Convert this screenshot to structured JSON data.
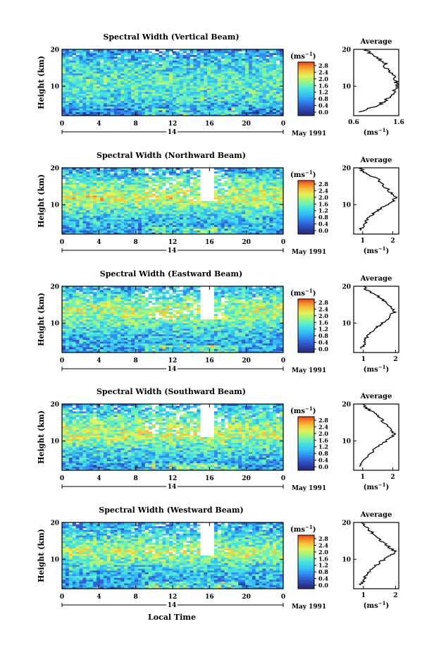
{
  "charts": [
    {
      "title": "Spectral Width (Vertical Beam)",
      "colorbar_unit": "(ms",
      "colorbar_unit_exp": "−1",
      "colorbar_ticks": [
        "2.8",
        "2.4",
        "2.0",
        "1.6",
        "1.2",
        "0.8",
        "0.4",
        "0.0"
      ],
      "avg_title": "Average",
      "avg_unit": "(ms",
      "avg_unit_exp": "−1",
      "avg_x_ticks": [
        "0.6",
        "1.6"
      ],
      "avg_x_range": [
        0.6,
        1.6
      ],
      "date_label": "May 1991",
      "day_label": "14"
    },
    {
      "title": "Spectral Width (Northward Beam)",
      "colorbar_unit": "(ms",
      "colorbar_unit_exp": "−1",
      "colorbar_ticks": [
        "2.8",
        "2.4",
        "2.0",
        "1.6",
        "1.2",
        "0.8",
        "0.4",
        "0.0"
      ],
      "avg_title": "Average",
      "avg_unit": "(ms",
      "avg_unit_exp": "−1",
      "avg_x_ticks": [
        "1",
        "2"
      ],
      "avg_x_range": [
        0.7,
        2.2
      ],
      "date_label": "May 1991",
      "day_label": "14"
    },
    {
      "title": "Spectral Width (Eastward Beam)",
      "colorbar_unit": "(ms",
      "colorbar_unit_exp": "−1",
      "colorbar_ticks": [
        "2.8",
        "2.4",
        "2.0",
        "1.6",
        "1.2",
        "0.8",
        "0.4",
        "0.0"
      ],
      "avg_title": "Average",
      "avg_unit": "(ms",
      "avg_unit_exp": "−1",
      "avg_x_ticks": [
        "1",
        "2"
      ],
      "avg_x_range": [
        0.7,
        2.1
      ],
      "date_label": "May 1991",
      "day_label": "14"
    },
    {
      "title": "Spectral Width (Southward Beam)",
      "colorbar_unit": "(ms",
      "colorbar_unit_exp": "−1",
      "colorbar_ticks": [
        "2.8",
        "2.4",
        "2.0",
        "1.6",
        "1.2",
        "0.8",
        "0.4",
        "0.0"
      ],
      "avg_title": "Average",
      "avg_unit": "(ms",
      "avg_unit_exp": "−1",
      "avg_x_ticks": [
        "1",
        "2"
      ],
      "avg_x_range": [
        0.7,
        2.2
      ],
      "date_label": "May 1991",
      "day_label": "14"
    },
    {
      "title": "Spectral Width (Westward Beam)",
      "colorbar_unit": "(ms",
      "colorbar_unit_exp": "−1",
      "colorbar_ticks": [
        "2.8",
        "2.4",
        "2.0",
        "1.6",
        "1.2",
        "0.8",
        "0.4",
        "0.0"
      ],
      "avg_title": "Average",
      "avg_unit": "(ms",
      "avg_unit_exp": "−1",
      "avg_x_ticks": [
        "1",
        "2"
      ],
      "avg_x_range": [
        0.7,
        2.1
      ],
      "date_label": "May 1991",
      "day_label": "14"
    }
  ],
  "shared": {
    "ylabel": "Height (km)",
    "xlabel": "Local Time",
    "x_ticks": [
      "0",
      "4",
      "8",
      "12",
      "16",
      "20",
      "0"
    ],
    "x_range": [
      0,
      24
    ],
    "y_ticks": [
      "20",
      "10"
    ],
    "y_range": [
      2,
      20
    ],
    "colorscale": [
      "#2c2c70",
      "#2a3a9e",
      "#2f5fd0",
      "#2f8ef0",
      "#35bff5",
      "#45dfe0",
      "#6ff0b8",
      "#a8f57a",
      "#e3f25a",
      "#f7c63c",
      "#f48a2a",
      "#e63f1f"
    ]
  },
  "chart_data": [
    {
      "type": "heatmap",
      "title": "Spectral Width (Vertical Beam)",
      "xlabel": "",
      "ylabel": "Height (km)",
      "x_range": [
        0,
        24
      ],
      "y_range": [
        2,
        20
      ],
      "z_range": [
        0.0,
        3.0
      ],
      "z_unit": "ms-1",
      "profile": {
        "heights": [
          3,
          4,
          5,
          6,
          7,
          8,
          9,
          10,
          11,
          12,
          13,
          14,
          15,
          16,
          17,
          18,
          19,
          20
        ],
        "values": [
          0.7,
          0.95,
          1.15,
          1.3,
          1.4,
          1.45,
          1.5,
          1.55,
          1.55,
          1.5,
          1.45,
          1.4,
          1.3,
          1.3,
          1.2,
          1.05,
          0.95,
          0.85
        ]
      }
    },
    {
      "type": "heatmap",
      "title": "Spectral Width (Northward Beam)",
      "xlabel": "",
      "ylabel": "Height (km)",
      "x_range": [
        0,
        24
      ],
      "y_range": [
        2,
        20
      ],
      "z_range": [
        0.0,
        3.0
      ],
      "z_unit": "ms-1",
      "profile": {
        "heights": [
          3,
          4,
          5,
          6,
          7,
          8,
          9,
          10,
          11,
          12,
          13,
          14,
          15,
          16,
          17,
          18,
          19,
          20
        ],
        "values": [
          0.9,
          1.0,
          1.1,
          1.15,
          1.25,
          1.45,
          1.6,
          1.8,
          2.0,
          2.1,
          1.95,
          1.85,
          1.7,
          1.6,
          1.5,
          1.2,
          1.0,
          0.95
        ]
      }
    },
    {
      "type": "heatmap",
      "title": "Spectral Width (Eastward Beam)",
      "xlabel": "",
      "ylabel": "Height (km)",
      "x_range": [
        0,
        24
      ],
      "y_range": [
        2,
        20
      ],
      "z_range": [
        0.0,
        3.0
      ],
      "z_unit": "ms-1",
      "profile": {
        "heights": [
          3,
          4,
          5,
          6,
          7,
          8,
          9,
          10,
          11,
          12,
          13,
          14,
          15,
          16,
          17,
          18,
          19,
          20
        ],
        "values": [
          0.9,
          1.0,
          1.05,
          1.1,
          1.2,
          1.3,
          1.45,
          1.6,
          1.75,
          1.85,
          1.95,
          1.9,
          1.8,
          1.65,
          1.5,
          1.3,
          1.1,
          1.0
        ]
      }
    },
    {
      "type": "heatmap",
      "title": "Spectral Width (Southward Beam)",
      "xlabel": "",
      "ylabel": "Height (km)",
      "x_range": [
        0,
        24
      ],
      "y_range": [
        2,
        20
      ],
      "z_range": [
        0.0,
        3.0
      ],
      "z_unit": "ms-1",
      "profile": {
        "heights": [
          3,
          4,
          5,
          6,
          7,
          8,
          9,
          10,
          11,
          12,
          13,
          14,
          15,
          16,
          17,
          18,
          19,
          20
        ],
        "values": [
          0.9,
          1.0,
          1.1,
          1.2,
          1.3,
          1.45,
          1.6,
          1.8,
          1.95,
          2.05,
          1.95,
          1.85,
          1.7,
          1.6,
          1.45,
          1.3,
          1.1,
          1.0
        ]
      }
    },
    {
      "type": "heatmap",
      "title": "Spectral Width (Westward Beam)",
      "xlabel": "Local Time",
      "ylabel": "Height (km)",
      "x_range": [
        0,
        24
      ],
      "y_range": [
        2,
        20
      ],
      "z_range": [
        0.0,
        3.0
      ],
      "z_unit": "ms-1",
      "profile": {
        "heights": [
          3,
          4,
          5,
          6,
          7,
          8,
          9,
          10,
          11,
          12,
          13,
          14,
          15,
          16,
          17,
          18,
          19,
          20
        ],
        "values": [
          0.9,
          1.0,
          1.05,
          1.1,
          1.2,
          1.35,
          1.5,
          1.65,
          1.85,
          2.0,
          1.85,
          1.7,
          1.55,
          1.45,
          1.3,
          1.15,
          1.05,
          0.95
        ]
      }
    }
  ]
}
